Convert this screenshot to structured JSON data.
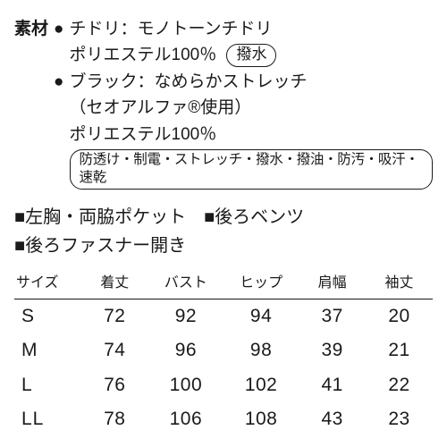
{
  "material": {
    "label": "素材",
    "items": [
      {
        "title": "チドリ：モノトーンチドリ",
        "sub": "ポリエステル100％",
        "badge": "撥水"
      },
      {
        "title": "ブラック：なめらかストレッチ",
        "note": "（セオアルファ®使用）",
        "sub": "ポリエステル100％",
        "long_badge": "防透け・制電・ストレッチ・撥水・撥油・防汚・吸汗・速乾"
      }
    ]
  },
  "features": {
    "row1": [
      "■左胸・両脇ポケット",
      "■後ろベンツ"
    ],
    "row2": [
      "■後ろファスナー開き"
    ]
  },
  "size_table": {
    "columns": [
      "サイズ",
      "着丈",
      "バスト",
      "ヒップ",
      "肩幅",
      "袖丈"
    ],
    "rows": [
      [
        "S",
        "72",
        "92",
        "94",
        "37",
        "20"
      ],
      [
        "M",
        "74",
        "96",
        "98",
        "39",
        "21"
      ],
      [
        "L",
        "76",
        "100",
        "102",
        "41",
        "22"
      ],
      [
        "LL",
        "78",
        "106",
        "108",
        "43",
        "23"
      ]
    ],
    "col_widths": [
      "16%",
      "16%",
      "18%",
      "18%",
      "16%",
      "16%"
    ]
  },
  "colors": {
    "text": "#1a1a1a",
    "background": "#ffffff",
    "rule": "#1a1a1a"
  }
}
